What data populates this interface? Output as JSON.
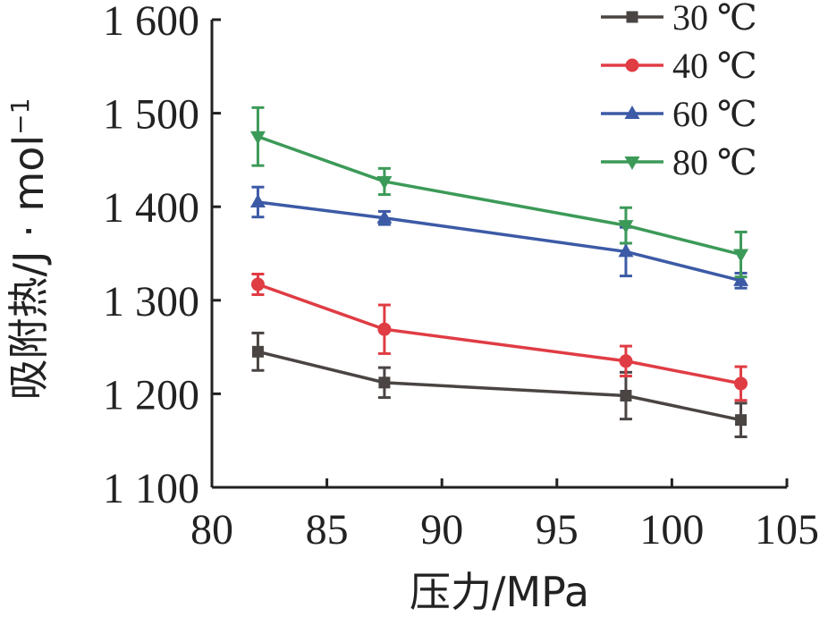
{
  "chart_data": {
    "type": "line",
    "xlabel": "压力/MPa",
    "ylabel_main": "吸附热/J · mol",
    "ylabel_sup": "−1",
    "xlim": [
      80,
      105
    ],
    "ylim": [
      1100,
      1600
    ],
    "x_ticks": [
      80,
      85,
      90,
      95,
      100,
      105
    ],
    "x_tick_labels": [
      "80",
      "85",
      "90",
      "95",
      "100",
      "105"
    ],
    "y_ticks": [
      1100,
      1200,
      1300,
      1400,
      1500,
      1600
    ],
    "y_tick_labels": [
      "1 100",
      "1 200",
      "1 300",
      "1 400",
      "1 500",
      "1 600"
    ],
    "legend_position": "top-right",
    "grid": false,
    "x": [
      82,
      87.5,
      98,
      103
    ],
    "series": [
      {
        "name": "30 ℃",
        "color": "#4a4443",
        "marker": "square",
        "values": [
          1245,
          1212,
          1198,
          1172
        ],
        "errors": [
          20,
          16,
          25,
          18
        ]
      },
      {
        "name": "40 ℃",
        "color": "#e03c44",
        "marker": "circle",
        "values": [
          1317,
          1269,
          1235,
          1211
        ],
        "errors": [
          11,
          26,
          16,
          18
        ]
      },
      {
        "name": "60 ℃",
        "color": "#3c5aa6",
        "marker": "triangle-up",
        "values": [
          1405,
          1388,
          1352,
          1321
        ],
        "errors": [
          16,
          7,
          26,
          8
        ]
      },
      {
        "name": "80 ℃",
        "color": "#3c9a58",
        "marker": "triangle-down",
        "values": [
          1475,
          1427,
          1380,
          1349
        ],
        "errors": [
          31,
          14,
          19,
          24
        ]
      }
    ]
  }
}
